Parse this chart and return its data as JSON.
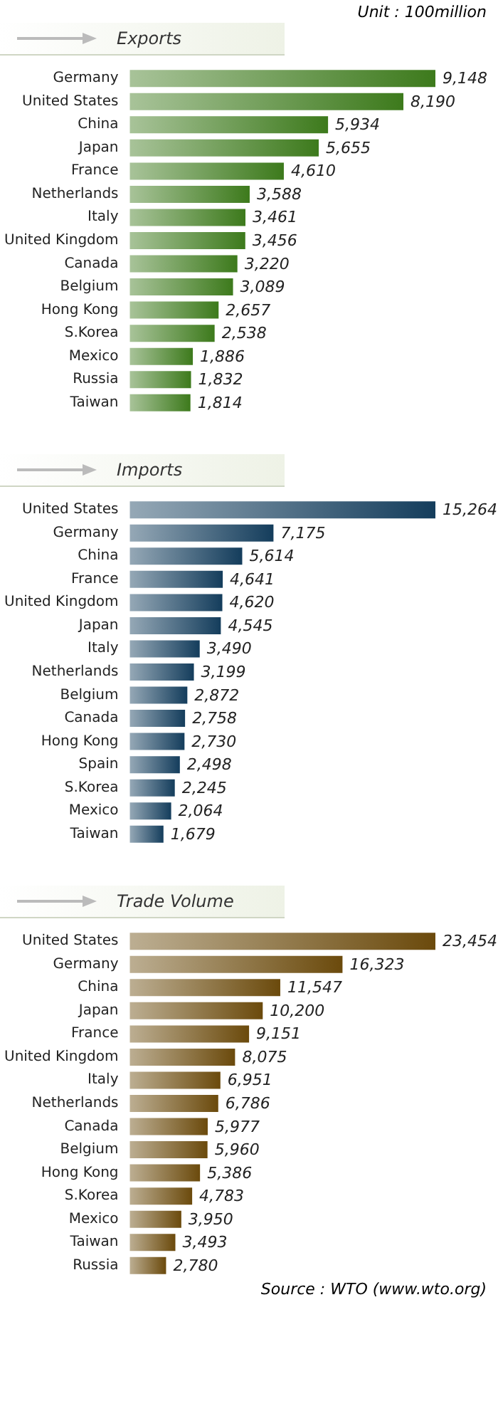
{
  "chart_data": [
    {
      "type": "bar",
      "orientation": "horizontal",
      "title": "Exports",
      "annotations": [
        "Unit : 100million"
      ],
      "categories": [
        "Germany",
        "United States",
        "China",
        "Japan",
        "France",
        "Netherlands",
        "Italy",
        "United Kingdom",
        "Canada",
        "Belgium",
        "Hong Kong",
        "S.Korea",
        "Mexico",
        "Russia",
        "Taiwan"
      ],
      "values": [
        9148,
        8190,
        5934,
        5655,
        4610,
        3588,
        3461,
        3456,
        3220,
        3089,
        2657,
        2538,
        1886,
        1832,
        1814
      ],
      "value_labels": [
        "9,148",
        "8,190",
        "5,934",
        "5,655",
        "4,610",
        "3,588",
        "3,461",
        "3,456",
        "3,220",
        "3,089",
        "2,657",
        "2,538",
        "1,886",
        "1,832",
        "1,814"
      ],
      "color": "#3d7a1c",
      "tick_labels": "y"
    },
    {
      "type": "bar",
      "orientation": "horizontal",
      "title": "Imports",
      "categories": [
        "United States",
        "Germany",
        "China",
        "France",
        "United Kingdom",
        "Japan",
        "Italy",
        "Netherlands",
        "Belgium",
        "Canada",
        "Hong Kong",
        "Spain",
        "S.Korea",
        "Mexico",
        "Taiwan"
      ],
      "values": [
        15264,
        7175,
        5614,
        4641,
        4620,
        4545,
        3490,
        3199,
        2872,
        2758,
        2730,
        2498,
        2245,
        2064,
        1679
      ],
      "value_labels": [
        "15,264",
        "7,175",
        "5,614",
        "4,641",
        "4,620",
        "4,545",
        "3,490",
        "3,199",
        "2,872",
        "2,758",
        "2,730",
        "2,498",
        "2,245",
        "2,064",
        "1,679"
      ],
      "color": "#143d5c",
      "tick_labels": "y"
    },
    {
      "type": "bar",
      "orientation": "horizontal",
      "title": "Trade Volume",
      "annotations": [
        "Source : WTO (www.wto.org)"
      ],
      "categories": [
        "United States",
        "Germany",
        "China",
        "Japan",
        "France",
        "United Kingdom",
        "Italy",
        "Netherlands",
        "Canada",
        "Belgium",
        "Hong Kong",
        "S.Korea",
        "Mexico",
        "Taiwan",
        "Russia"
      ],
      "values": [
        23454,
        16323,
        11547,
        10200,
        9151,
        8075,
        6951,
        6786,
        5977,
        5960,
        5386,
        4783,
        3950,
        3493,
        2780
      ],
      "value_labels": [
        "23,454",
        "16,323",
        "11,547",
        "10,200",
        "9,151",
        "8,075",
        "6,951",
        "6,786",
        "5,977",
        "5,960",
        "5,386",
        "4,783",
        "3,950",
        "3,493",
        "2,780"
      ],
      "color": "#6b4a0c",
      "tick_labels": "y"
    }
  ]
}
